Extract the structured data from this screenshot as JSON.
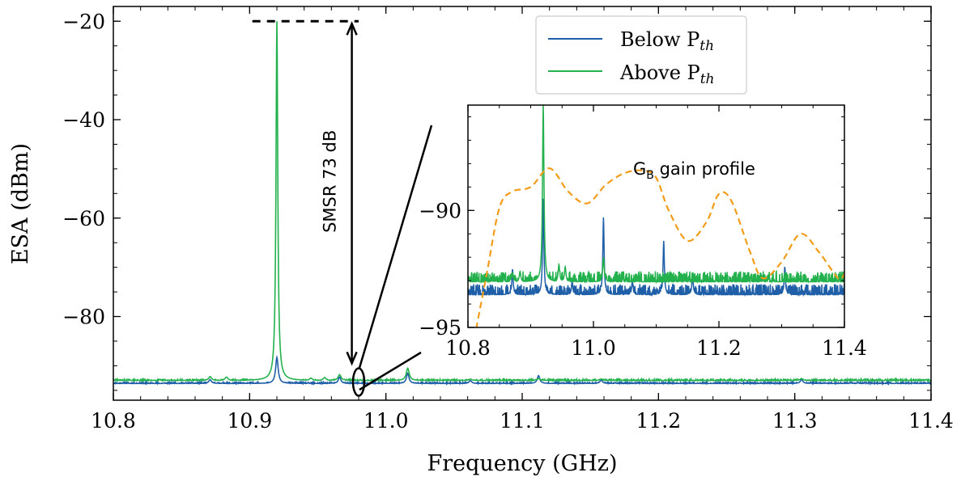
{
  "chart_data": [
    {
      "type": "line",
      "xlabel": "Frequency (GHz)",
      "ylabel": "ESA (dBm)",
      "xlim": [
        10.8,
        11.4
      ],
      "ylim": [
        -97,
        -17
      ],
      "x_ticks": [
        10.8,
        10.9,
        11.0,
        11.1,
        11.2,
        11.3,
        11.4
      ],
      "x_tick_labels": [
        "10.8",
        "10.9",
        "11.0",
        "11.1",
        "11.2",
        "11.3",
        "11.4"
      ],
      "y_ticks": [
        -20,
        -40,
        -60,
        -80
      ],
      "y_tick_labels": [
        "−20",
        "−40",
        "−60",
        "−80"
      ],
      "grid": false,
      "legend": {
        "placement": "top-right",
        "entries": [
          {
            "label": "Below P",
            "sub": "th",
            "color": "#1f5fa8"
          },
          {
            "label": "Above P",
            "sub": "th",
            "color": "#22b14c"
          }
        ]
      },
      "series": [
        {
          "name": "Below Pth",
          "color": "#1f5fa8",
          "baseline": -93.6,
          "peaks": [
            {
              "x": 10.871,
              "y": -92.8
            },
            {
              "x": 10.92,
              "y": -88.3
            },
            {
              "x": 10.966,
              "y": -92.3
            },
            {
              "x": 11.016,
              "y": -91.5
            },
            {
              "x": 11.062,
              "y": -93.0
            },
            {
              "x": 11.112,
              "y": -92.0
            },
            {
              "x": 11.158,
              "y": -92.9
            },
            {
              "x": 11.305,
              "y": -92.8
            }
          ]
        },
        {
          "name": "Above Pth",
          "color": "#22b14c",
          "baseline": -93.0,
          "peaks": [
            {
              "x": 10.871,
              "y": -92.2
            },
            {
              "x": 10.883,
              "y": -92.3
            },
            {
              "x": 10.92,
              "y": -20.0
            },
            {
              "x": 10.945,
              "y": -92.5
            },
            {
              "x": 10.955,
              "y": -92.4
            },
            {
              "x": 10.966,
              "y": -91.8
            },
            {
              "x": 11.016,
              "y": -90.5
            },
            {
              "x": 11.062,
              "y": -92.7
            },
            {
              "x": 11.112,
              "y": -92.6
            },
            {
              "x": 11.158,
              "y": -92.7
            },
            {
              "x": 11.305,
              "y": -92.6
            }
          ]
        }
      ],
      "annotations": {
        "smsr_label": "SMSR 73 dB",
        "dashed_level_y": -20,
        "arrow_x": 10.975,
        "arrow_from_y": -20.5,
        "arrow_to_y": -89.5,
        "zoom_ellipse": {
          "x": 10.98,
          "y": -93.3
        }
      }
    },
    {
      "type": "line",
      "xlim": [
        10.8,
        11.4
      ],
      "ylim": [
        -95,
        -85.5
      ],
      "x_ticks": [
        10.8,
        11.0,
        11.2,
        11.4
      ],
      "x_tick_labels": [
        "10.8",
        "11.0",
        "11.2",
        "11.4"
      ],
      "y_ticks": [
        -90,
        -95
      ],
      "y_tick_labels": [
        "−90",
        "−95"
      ],
      "grid": false,
      "annotation_label": "G",
      "annotation_sub": "B",
      "annotation_rest": " gain profile",
      "series": [
        {
          "name": "Below Pth",
          "color": "#1f5fa8",
          "baseline": -93.6,
          "peaks": [
            {
              "x": 10.871,
              "y": -92.5
            },
            {
              "x": 10.92,
              "y": -89.5
            },
            {
              "x": 10.966,
              "y": -93.0
            },
            {
              "x": 11.016,
              "y": -90.3
            },
            {
              "x": 11.062,
              "y": -93.0
            },
            {
              "x": 11.112,
              "y": -91.3
            },
            {
              "x": 11.158,
              "y": -92.7
            },
            {
              "x": 11.305,
              "y": -92.4
            }
          ]
        },
        {
          "name": "Above Pth",
          "color": "#22b14c",
          "baseline": -93.05,
          "peaks": [
            {
              "x": 10.871,
              "y": -92.7
            },
            {
              "x": 10.883,
              "y": -92.6
            },
            {
              "x": 10.92,
              "y": -85.5
            },
            {
              "x": 10.945,
              "y": -92.3
            },
            {
              "x": 10.955,
              "y": -92.4
            },
            {
              "x": 11.016,
              "y": -92.0
            }
          ]
        },
        {
          "name": "GB gain profile",
          "color": "#f39c1a",
          "dashed": true,
          "x": [
            10.81,
            10.83,
            10.85,
            10.87,
            10.9,
            10.93,
            10.96,
            10.99,
            11.02,
            11.05,
            11.08,
            11.1,
            11.12,
            11.15,
            11.18,
            11.2,
            11.22,
            11.25,
            11.27,
            11.3,
            11.33,
            11.36,
            11.39,
            11.4
          ],
          "y": [
            -95.5,
            -92.7,
            -89.9,
            -89.2,
            -89.0,
            -88.2,
            -89.2,
            -89.7,
            -88.9,
            -88.4,
            -88.3,
            -88.6,
            -90.0,
            -91.3,
            -90.5,
            -89.3,
            -89.6,
            -91.8,
            -92.9,
            -92.2,
            -91.0,
            -91.8,
            -92.9,
            -92.7
          ]
        }
      ]
    }
  ]
}
